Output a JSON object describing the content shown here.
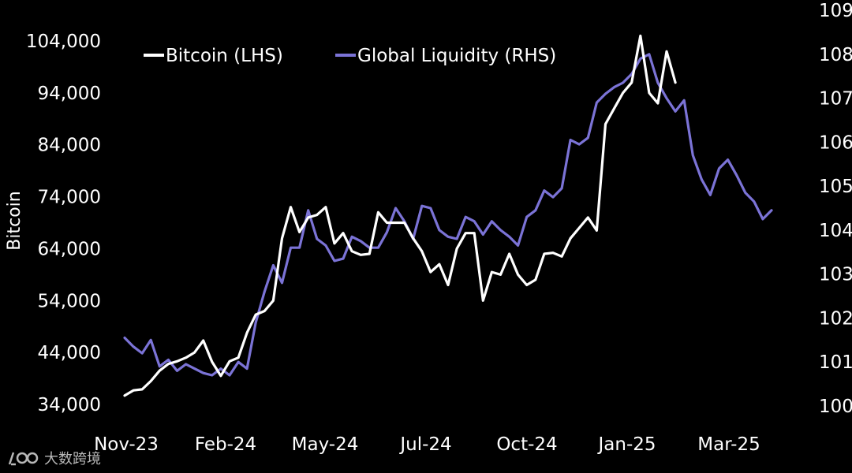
{
  "chart_data": {
    "type": "line",
    "ylabel": "Bitcoin",
    "x_tick_labels": [
      "Nov-23",
      "Feb-24",
      "May-24",
      "Jul-24",
      "Oct-24",
      "Jan-25",
      "Mar-25"
    ],
    "left_axis": {
      "ticks": [
        34000,
        44000,
        54000,
        64000,
        74000,
        84000,
        94000,
        104000
      ],
      "ylim": [
        33000,
        107000
      ]
    },
    "right_axis": {
      "ticks": [
        100,
        101,
        102,
        103,
        104,
        105,
        106,
        107,
        108,
        109
      ],
      "ylim": [
        99.95,
        109.2
      ]
    },
    "legend_placement": "top",
    "grid": false,
    "series": [
      {
        "name": "Bitcoin (LHS)",
        "axis": "left",
        "color": "#ffffff",
        "values": [
          35700,
          36700,
          36900,
          38500,
          40500,
          41800,
          42300,
          43000,
          44000,
          46300,
          42200,
          39500,
          42300,
          43000,
          47800,
          51300,
          52000,
          54000,
          66000,
          72000,
          67200,
          70000,
          70500,
          72000,
          65000,
          67000,
          63500,
          62800,
          63000,
          71000,
          69000,
          69000,
          69000,
          66000,
          63500,
          59500,
          61000,
          57000,
          64000,
          67000,
          67000,
          54000,
          59500,
          59000,
          63000,
          59000,
          57000,
          58000,
          63000,
          63200,
          62500,
          66000,
          68000,
          70000,
          67500,
          88000,
          91000,
          94000,
          96000,
          105000,
          94000,
          92000,
          102000,
          96000
        ],
        "x_start_index": 0
      },
      {
        "name": "Global Liquidity (RHS)",
        "axis": "right",
        "color": "#7b73d6",
        "values": [
          101.55,
          101.35,
          101.2,
          101.5,
          100.9,
          101.05,
          100.8,
          100.95,
          100.85,
          100.75,
          100.7,
          100.85,
          100.7,
          101.0,
          100.85,
          101.9,
          102.6,
          103.2,
          102.8,
          103.6,
          103.6,
          104.45,
          103.8,
          103.65,
          103.3,
          103.35,
          103.85,
          103.75,
          103.6,
          103.6,
          103.95,
          104.5,
          104.2,
          103.8,
          104.55,
          104.5,
          104.0,
          103.85,
          103.8,
          104.3,
          104.2,
          103.9,
          104.2,
          104.0,
          103.85,
          103.65,
          104.3,
          104.45,
          104.9,
          104.75,
          104.95,
          106.05,
          105.95,
          106.1,
          106.9,
          107.1,
          107.25,
          107.35,
          107.55,
          107.9,
          108.0,
          107.35,
          107.0,
          106.7,
          106.95,
          105.7,
          105.15,
          104.8,
          105.4,
          105.6,
          105.25,
          104.85,
          104.65,
          104.25,
          104.45
        ],
        "x_start_index": 0
      }
    ]
  },
  "watermark": {
    "text": "大数跨境"
  }
}
